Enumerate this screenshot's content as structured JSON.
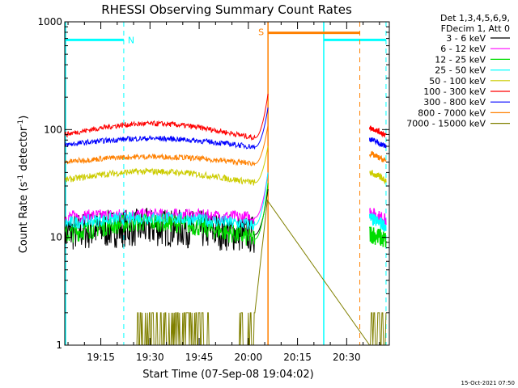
{
  "chart_data": {
    "type": "line",
    "title": "RHESSI Observing Summary Count Rates",
    "xlabel": "Start Time (07-Sep-08 19:04:02)",
    "ylabel_parts": [
      "Count Rate (s",
      "-1",
      " detector",
      "-1",
      ")"
    ],
    "y_scale": "log",
    "ylim": [
      1,
      1000
    ],
    "y_ticks": [
      1,
      10,
      100,
      1000
    ],
    "y_tick_labels": [
      "1",
      "10",
      "100",
      "1000"
    ],
    "x_range_minutes": [
      "19:04",
      "20:43"
    ],
    "x_ticks": [
      "19:15",
      "19:30",
      "19:45",
      "20:00",
      "20:15",
      "20:30"
    ],
    "legend_header": [
      "Det 1,3,4,5,6,9,",
      "FDecim 1, Att 0"
    ],
    "series": [
      {
        "name": "3 - 6 keV",
        "color": "#000000",
        "base": 11,
        "noise": 0.18,
        "bump": 0.05,
        "peak": 28,
        "post": 0
      },
      {
        "name": "6 - 12 keV",
        "color": "#ff00ff",
        "base": 15.5,
        "noise": 0.06,
        "bump": 0.02,
        "peak": 40,
        "post": 17
      },
      {
        "name": "12 - 25 keV",
        "color": "#00dd00",
        "base": 10.5,
        "noise": 0.09,
        "bump": 0.12,
        "peak": 32,
        "post": 11
      },
      {
        "name": "25 - 50 keV",
        "color": "#00ffff",
        "base": 13.5,
        "noise": 0.06,
        "bump": 0.05,
        "peak": 40,
        "post": 15
      },
      {
        "name": "50 - 100 keV",
        "color": "#cccc00",
        "base": 34,
        "noise": 0.03,
        "bump": 0.08,
        "peak": 70,
        "post": 40
      },
      {
        "name": "100 - 300 keV",
        "color": "#ff0000",
        "base": 90,
        "noise": 0.025,
        "bump": 0.1,
        "peak": 215,
        "post": 105
      },
      {
        "name": "300 - 800 keV",
        "color": "#0000ff",
        "base": 72,
        "noise": 0.025,
        "bump": 0.06,
        "peak": 160,
        "post": 82
      },
      {
        "name": "800 - 7000 keV",
        "color": "#ff8000",
        "base": 50,
        "noise": 0.025,
        "bump": 0.05,
        "peak": 110,
        "post": 60
      },
      {
        "name": "7000 - 15000 keV",
        "color": "#808000",
        "base": 1,
        "noise": 0,
        "bump": 0,
        "peak": 25,
        "post": 0
      }
    ],
    "annotations": [
      {
        "text": "N",
        "color": "#00ffff"
      },
      {
        "text": "S",
        "color": "#ff8000"
      }
    ],
    "footer_timestamp": "15-Oct-2021 07:50"
  }
}
